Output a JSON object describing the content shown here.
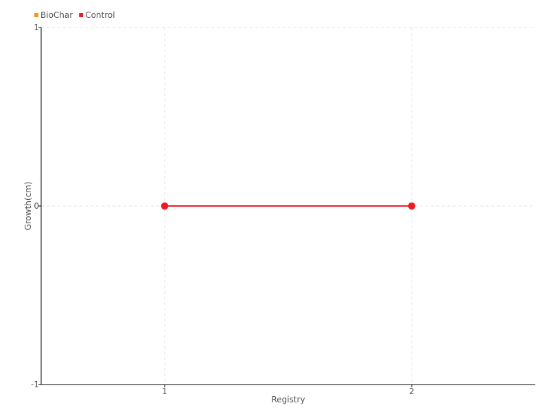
{
  "chart_data": {
    "type": "line",
    "title": "",
    "xlabel": "Registry",
    "ylabel": "Growth(cm)",
    "x": [
      1,
      2
    ],
    "xticks": [
      "1",
      "2"
    ],
    "yticks": [
      "-1",
      "0",
      "1"
    ],
    "xlim": [
      0.5,
      2.5
    ],
    "ylim": [
      -1,
      1
    ],
    "grid": true,
    "legend_position": "top-left",
    "series": [
      {
        "name": "BioChar",
        "values": [
          0,
          0
        ],
        "color": "#f7931e"
      },
      {
        "name": "Control",
        "values": [
          0,
          0
        ],
        "color": "#ee1c25"
      }
    ]
  }
}
